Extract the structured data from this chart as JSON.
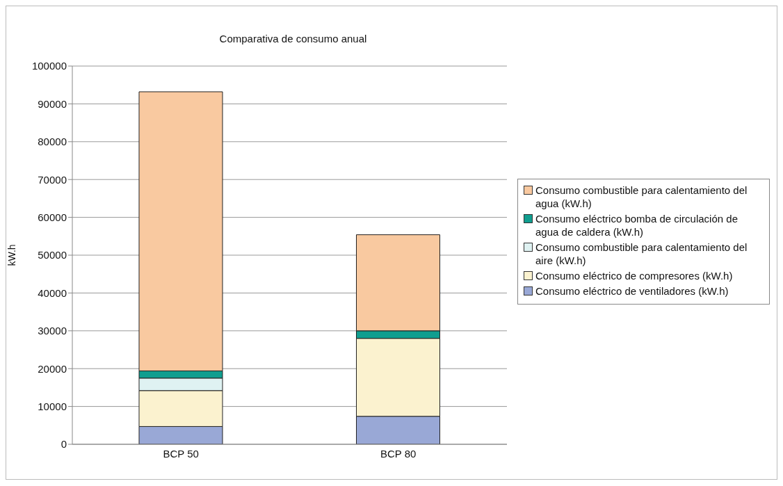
{
  "chart_data": {
    "type": "bar",
    "title": "Comparativa de consumo anual",
    "ylabel": "kW.h",
    "categories": [
      "BCP 50",
      "BCP 80"
    ],
    "stacked": true,
    "series": [
      {
        "name": "Consumo eléctrico de ventiladores (kW.h)",
        "color": "#99a8d6",
        "values": [
          4700,
          7400
        ]
      },
      {
        "name": "Consumo eléctrico de compresores (kW.h)",
        "color": "#fbf2cf",
        "values": [
          9500,
          20600
        ]
      },
      {
        "name": "Consumo combustible para calentamiento del aire (kW.h)",
        "color": "#dff2f2",
        "values": [
          3300,
          0
        ]
      },
      {
        "name": "Consumo eléctrico bomba de circulación de agua de caldera  (kW.h)",
        "color": "#109e8f",
        "values": [
          1900,
          2000
        ]
      },
      {
        "name": "Consumo combustible para calentamiento del agua (kW.h)",
        "color": "#f9c9a0",
        "values": [
          73800,
          25400
        ]
      }
    ],
    "ylim": [
      0,
      100000
    ],
    "yticks": [
      0,
      10000,
      20000,
      30000,
      40000,
      50000,
      60000,
      70000,
      80000,
      90000,
      100000
    ],
    "grid": "y",
    "legend": "right"
  }
}
